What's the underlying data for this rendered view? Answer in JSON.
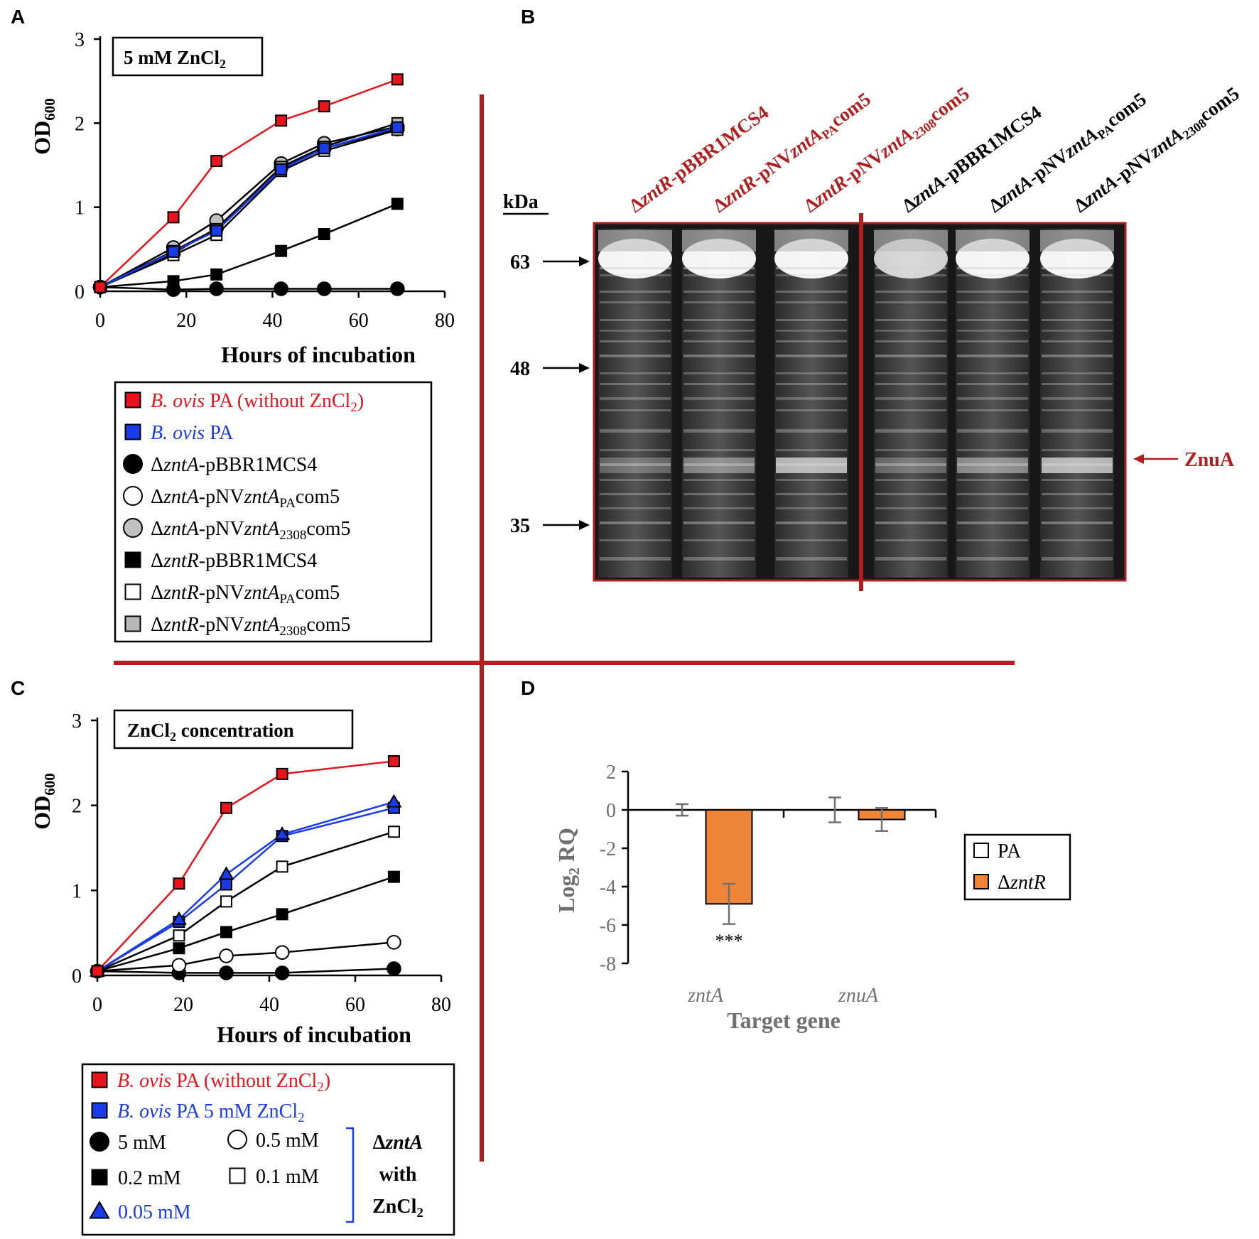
{
  "panels": {
    "A": {
      "letter": "A"
    },
    "B": {
      "letter": "B"
    },
    "C": {
      "letter": "C"
    },
    "D": {
      "letter": "D"
    }
  },
  "chart_data": [
    {
      "id": "A",
      "type": "line",
      "title": "5 mM ZnCl",
      "title_sub": "2",
      "xlabel": "Hours of incubation",
      "ylabel": "OD",
      "ylabel_sub": "600",
      "xlim": [
        0,
        80
      ],
      "ylim": [
        0,
        3
      ],
      "xticks": [
        "0",
        "20",
        "40",
        "60",
        "80"
      ],
      "yticks": [
        "0",
        "1",
        "2",
        "3"
      ],
      "x": [
        0,
        17,
        27,
        42,
        52,
        69
      ],
      "series": [
        {
          "key": "zntA-pNVcomPA",
          "marker": "circle",
          "fill": "#ffffff",
          "line": "#000000",
          "values": [
            0.05,
            0.45,
            0.75,
            1.47,
            1.7,
            1.93
          ]
        },
        {
          "key": "zntA-pNV2308",
          "marker": "circle",
          "fill": "#c0c0c0",
          "line": "#000000",
          "values": [
            0.05,
            0.52,
            0.84,
            1.52,
            1.76,
            1.96
          ]
        },
        {
          "key": "zntR-pNVPA",
          "marker": "square",
          "fill": "#ffffff",
          "line": "#000000",
          "values": [
            0.05,
            0.43,
            0.67,
            1.43,
            1.67,
            1.92
          ]
        },
        {
          "key": "zntR-pNV2308",
          "marker": "square",
          "fill": "#b8b8b8",
          "line": "#000000",
          "values": [
            0.05,
            0.48,
            0.74,
            1.48,
            1.72,
            2.0
          ]
        },
        {
          "key": "PA",
          "marker": "square",
          "fill": "#1a3be8",
          "line": "#1a3be8",
          "values": [
            0.05,
            0.47,
            0.72,
            1.45,
            1.7,
            1.95
          ]
        },
        {
          "key": "zntA-pBBR",
          "marker": "circle",
          "fill": "#000000",
          "line": "#000000",
          "values": [
            0.05,
            0.02,
            0.03,
            0.03,
            0.03,
            0.03
          ]
        },
        {
          "key": "zntR-pBBR",
          "marker": "square",
          "fill": "#000000",
          "line": "#000000",
          "values": [
            0.05,
            0.12,
            0.2,
            0.48,
            0.68,
            1.04
          ]
        },
        {
          "key": "PA-noZn",
          "marker": "square",
          "fill": "#e8141c",
          "line": "#e8141c",
          "values": [
            0.05,
            0.88,
            1.55,
            2.03,
            2.2,
            2.52
          ]
        }
      ]
    },
    {
      "id": "C",
      "type": "line",
      "title": "ZnCl",
      "title_sub": "2",
      "title_rest": " concentration",
      "xlabel": "Hours of incubation",
      "ylabel": "OD",
      "ylabel_sub": "600",
      "xlim": [
        0,
        80
      ],
      "ylim": [
        0,
        3
      ],
      "xticks": [
        "0",
        "20",
        "40",
        "60",
        "80"
      ],
      "yticks": [
        "0",
        "1",
        "2",
        "3"
      ],
      "x": [
        0,
        19,
        30,
        43,
        69
      ],
      "series": [
        {
          "key": "5mM",
          "marker": "circle",
          "fill": "#000000",
          "line": "#000000",
          "values": [
            0.05,
            0.03,
            0.03,
            0.03,
            0.08
          ]
        },
        {
          "key": "0.5mM",
          "marker": "circle",
          "fill": "#ffffff",
          "line": "#000000",
          "values": [
            0.05,
            0.12,
            0.23,
            0.27,
            0.39
          ]
        },
        {
          "key": "0.2mM",
          "marker": "square",
          "fill": "#000000",
          "line": "#000000",
          "values": [
            0.05,
            0.32,
            0.51,
            0.72,
            1.16
          ]
        },
        {
          "key": "0.1mM",
          "marker": "square",
          "fill": "#ffffff",
          "line": "#000000",
          "values": [
            0.05,
            0.47,
            0.87,
            1.28,
            1.69
          ]
        },
        {
          "key": "PA5mM",
          "marker": "square",
          "fill": "#1a3be8",
          "line": "#1a3be8",
          "values": [
            0.05,
            0.63,
            1.07,
            1.64,
            1.97
          ]
        },
        {
          "key": "0.05mM",
          "marker": "triangle",
          "fill": "#1a3be8",
          "line": "#1a3be8",
          "values": [
            0.05,
            0.66,
            1.19,
            1.66,
            2.04
          ]
        },
        {
          "key": "PA-noZn",
          "marker": "square",
          "fill": "#e8141c",
          "line": "#e8141c",
          "values": [
            0.05,
            1.08,
            1.97,
            2.37,
            2.52
          ]
        }
      ]
    },
    {
      "id": "D",
      "type": "bar",
      "xlabel": "Target gene",
      "ylabel": "Log",
      "ylabel_sub": "2",
      "ylabel_rest": " RQ",
      "ylim": [
        -8,
        2
      ],
      "yticks": [
        "2",
        "0",
        "-2",
        "-4",
        "-6",
        "-8"
      ],
      "categories": [
        "zntA",
        "znuA"
      ],
      "series": [
        {
          "name": "PA",
          "fill": "#ffffff",
          "values": [
            0.0,
            0.0
          ],
          "errors": [
            0.3,
            0.65
          ]
        },
        {
          "name": "ΔzntR",
          "fill": "#ef8536",
          "values": [
            -4.9,
            -0.5
          ],
          "errors": [
            1.05,
            0.6
          ]
        }
      ],
      "annotation": "***",
      "legend_position": "right"
    }
  ],
  "legendA": [
    {
      "italic": "B. ovis",
      "rest": " PA (without ZnCl",
      "sub": "2",
      "end": ")",
      "color": "#e8141c"
    },
    {
      "italic": "B. ovis",
      "rest": " PA",
      "color": "#1a3be8"
    },
    {
      "delta": "Δ",
      "gene": "zntA",
      "plasmid": "-pBBR1MCS4"
    },
    {
      "delta": "Δ",
      "gene": "zntA",
      "plasmid": "-pNV",
      "gene2": "zntA",
      "sub": "PA",
      "end": "com5"
    },
    {
      "delta": "Δ",
      "gene": "zntA",
      "plasmid": "-pNV",
      "gene2": "zntA",
      "sub": "2308",
      "end": "com5"
    },
    {
      "delta": "Δ",
      "gene": "zntR",
      "plasmid": "-pBBR1MCS4"
    },
    {
      "delta": "Δ",
      "gene": "zntR",
      "plasmid": "-pNV",
      "gene2": "zntA",
      "sub": "PA",
      "end": "com5"
    },
    {
      "delta": "Δ",
      "gene": "zntR",
      "plasmid": "-pNV",
      "gene2": "zntA",
      "sub": "2308",
      "end": "com5"
    }
  ],
  "legendC": {
    "top": [
      {
        "italic": "B. ovis",
        "rest": " PA (without ZnCl",
        "sub": "2",
        "end": ")",
        "color": "#e8141c"
      },
      {
        "italic": "B. ovis",
        "rest": " PA 5 mM ZnCl",
        "sub": "2",
        "end": "",
        "color": "#1a3be8"
      }
    ],
    "conc": [
      "5 mM",
      "0.5 mM",
      "0.2 mM",
      "0.1 mM",
      "0.05 mM"
    ],
    "group_line1_delta": "Δ",
    "group_line1_gene": "zntA",
    "group_line2": "with",
    "group_line3": "ZnCl",
    "group_line3_sub": "2"
  },
  "gel": {
    "kda_label": "kDa",
    "markers": [
      "63",
      "48",
      "35"
    ],
    "znua_label": "ZnuA",
    "lanes": [
      {
        "delta": "Δ",
        "gene": "zntR",
        "rest": "-pBBR1MCS4",
        "color": "#b01e1e"
      },
      {
        "delta": "Δ",
        "gene": "zntR",
        "rest": "-pNV",
        "gene2": "zntA",
        "sub": "PA",
        "end": "com5",
        "color": "#b01e1e"
      },
      {
        "delta": "Δ",
        "gene": "zntR",
        "rest": "-pNV",
        "gene2": "zntA",
        "sub": "2308",
        "end": "com5",
        "color": "#b01e1e"
      },
      {
        "delta": "Δ",
        "gene": "zntA",
        "rest": "-pBBR1MCS4",
        "color": "#000000"
      },
      {
        "delta": "Δ",
        "gene": "zntA",
        "rest": "-pNV",
        "gene2": "zntA",
        "sub": "PA",
        "end": "com5",
        "color": "#000000"
      },
      {
        "delta": "Δ",
        "gene": "zntA",
        "rest": "-pNV",
        "gene2": "zntA",
        "sub": "2308",
        "end": "com5",
        "color": "#000000"
      }
    ]
  },
  "colors": {
    "divider": "#b01e1e",
    "red": "#e8141c",
    "blue": "#1a3be8",
    "orange": "#ef8536",
    "gel_frame": "#b01e1e"
  }
}
